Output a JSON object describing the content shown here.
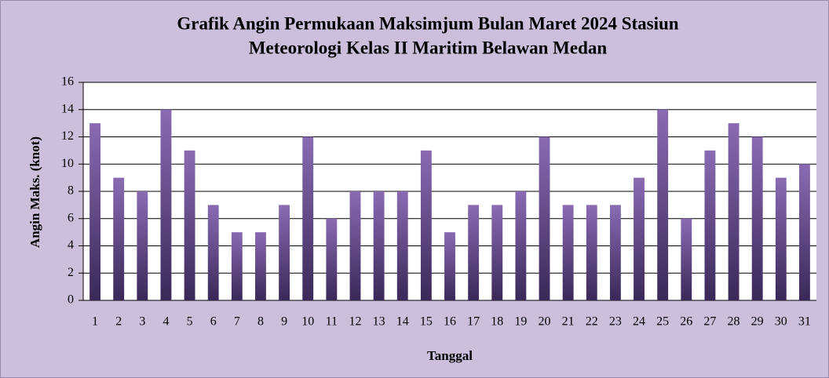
{
  "chart_data": {
    "type": "bar",
    "title": [
      "Grafik Angin Permukaan Maksimjum Bulan Maret 2024 Stasiun",
      "Meteorologi Kelas II Maritim Belawan Medan"
    ],
    "x_label": "Tanggal",
    "y_label": "Angin Maks. (knot)",
    "categories": [
      "1",
      "2",
      "3",
      "4",
      "5",
      "6",
      "7",
      "8",
      "9",
      "10",
      "11",
      "12",
      "13",
      "14",
      "15",
      "16",
      "17",
      "18",
      "19",
      "20",
      "21",
      "22",
      "23",
      "24",
      "25",
      "26",
      "27",
      "28",
      "29",
      "30",
      "31"
    ],
    "values": [
      13,
      9,
      8,
      14,
      11,
      7,
      5,
      5,
      7,
      12,
      6,
      8,
      8,
      8,
      11,
      5,
      7,
      7,
      8,
      12,
      7,
      7,
      7,
      9,
      14,
      6,
      11,
      13,
      12,
      9,
      10
    ],
    "color": "#5e4585",
    "ylim": [
      0,
      16
    ],
    "yticks": [
      0,
      2,
      4,
      6,
      8,
      10,
      12,
      14,
      16
    ],
    "grid": true
  }
}
